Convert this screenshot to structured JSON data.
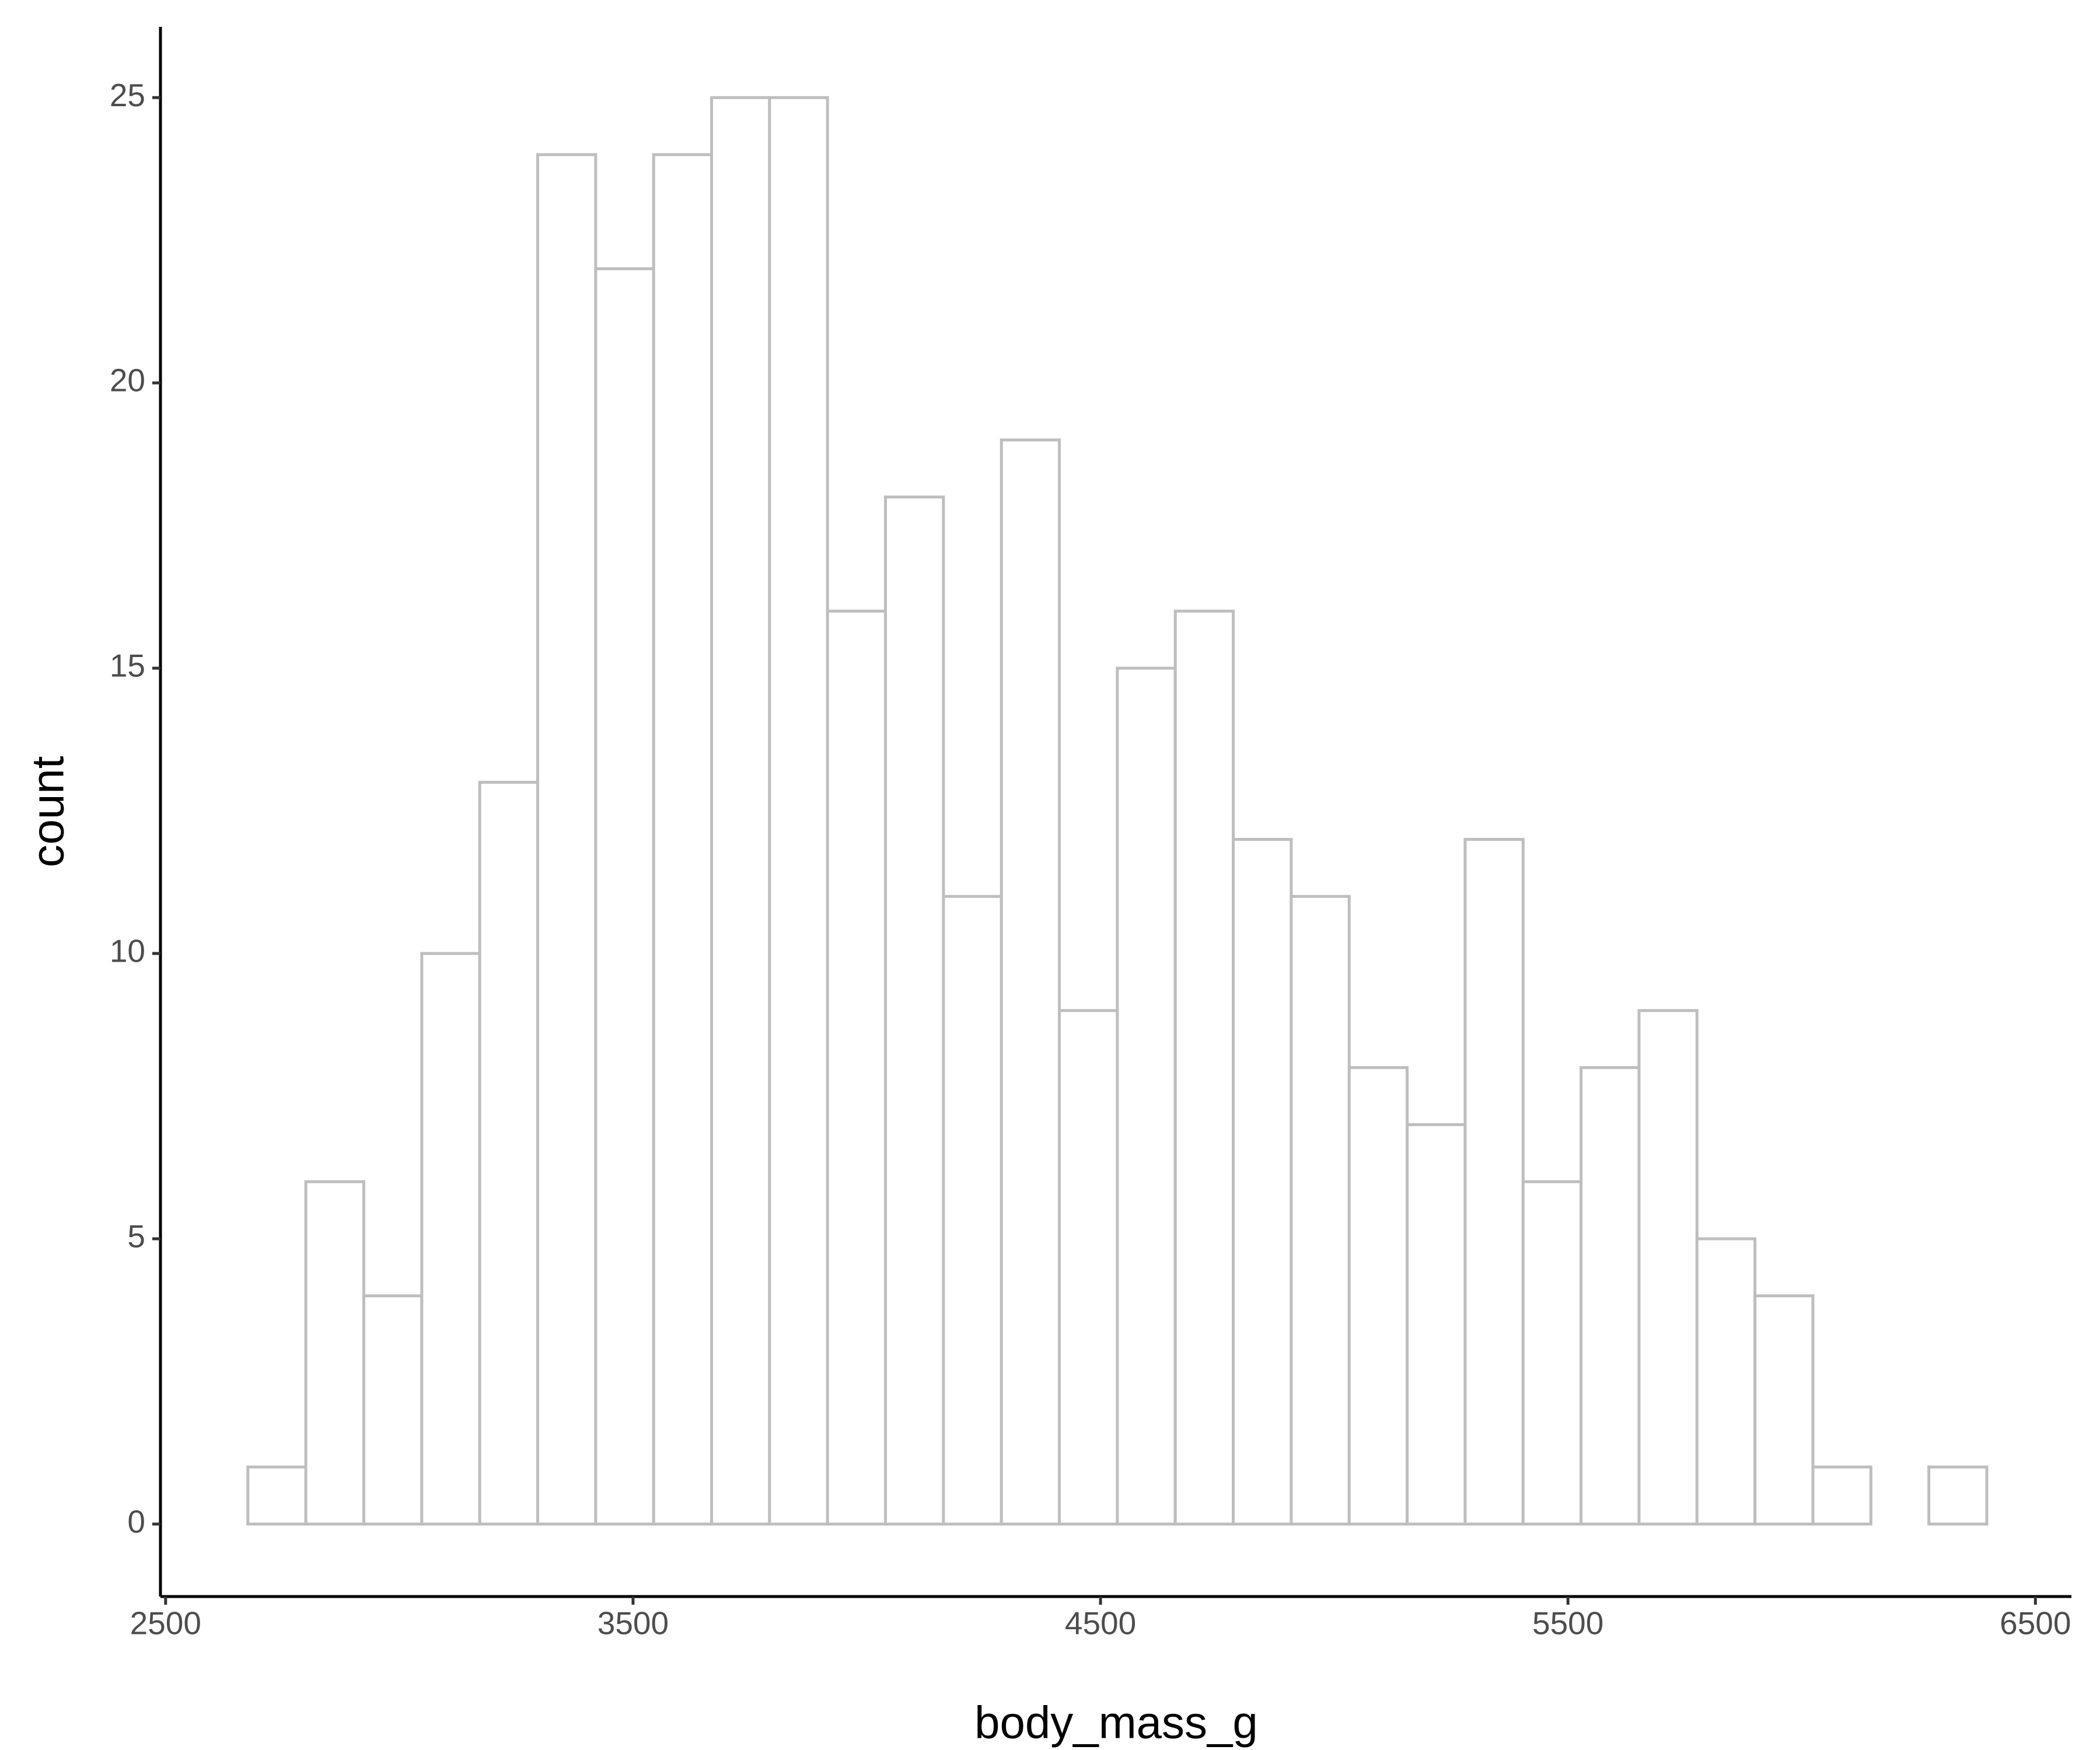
{
  "chart_data": {
    "type": "histogram",
    "bins": [
      2676,
      2800,
      2924,
      3048,
      3172,
      3296,
      3420,
      3544,
      3668,
      3792,
      3916,
      4040,
      4164,
      4288,
      4412,
      4536,
      4660,
      4784,
      4908,
      5032,
      5156,
      5280,
      5404,
      5528,
      5652,
      5776,
      5900,
      6024,
      6148,
      6272,
      6396
    ],
    "counts": [
      1,
      6,
      4,
      10,
      13,
      24,
      22,
      24,
      25,
      25,
      16,
      18,
      11,
      19,
      9,
      15,
      16,
      12,
      11,
      8,
      7,
      12,
      6,
      8,
      9,
      5,
      4,
      1,
      0,
      1
    ],
    "color": "#bebebe",
    "fill": "#ffffff",
    "xlabel": "body_mass_g",
    "ylabel": "count",
    "xlim": [
      2489,
      6577
    ],
    "xticks": [
      2500,
      3500,
      4500,
      5500,
      6500
    ],
    "ylim": [
      -1.27,
      26.24
    ],
    "yticks": [
      0,
      5,
      10,
      15,
      20,
      25
    ]
  }
}
